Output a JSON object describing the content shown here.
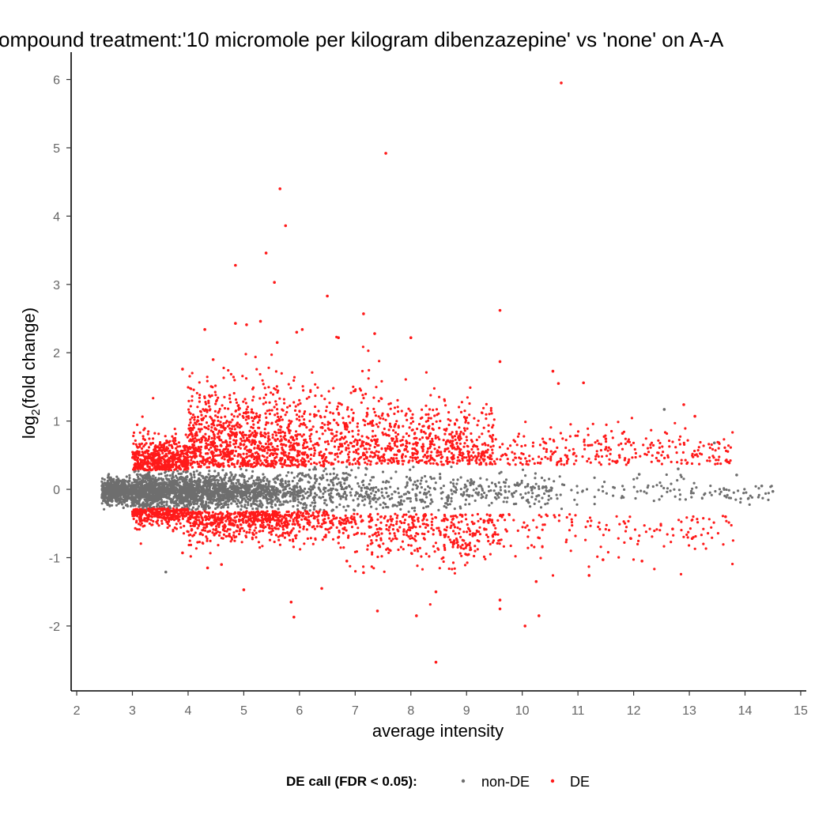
{
  "chart_data": {
    "type": "scatter",
    "title": "ompound treatment:'10 micromole per kilogram dibenzazepine' vs 'none' on A-A",
    "xlabel": "average intensity",
    "ylabel": "log2(fold change)",
    "ylabel_base": "log",
    "ylabel_sub": "2",
    "ylabel_rest": "(fold change)",
    "xlim": [
      1.9,
      15.1
    ],
    "ylim": [
      -2.95,
      6.4
    ],
    "x_ticks": [
      "2",
      "3",
      "4",
      "5",
      "6",
      "7",
      "8",
      "9",
      "10",
      "11",
      "12",
      "13",
      "14",
      "15"
    ],
    "y_ticks": [
      "-2",
      "-1",
      "0",
      "1",
      "2",
      "3",
      "4",
      "5",
      "6"
    ],
    "grid": false,
    "legend": {
      "position": "bottom",
      "title": "DE call (FDR < 0.05):",
      "entries": [
        {
          "label": "non-DE",
          "color": "#6e6e6e"
        },
        {
          "label": "DE",
          "color": "#ff1a1a"
        }
      ]
    },
    "colors": {
      "non_de": "#6e6e6e",
      "de": "#ff1a1a"
    },
    "notes_on_density": "dense band of ~tens of thousands of points; non-DE centered near 0 narrowing with intensity; DE points lie outside approx |lfc|>0.3",
    "series": [
      {
        "name": "DE",
        "points": [
          [
            10.7,
            5.95
          ],
          [
            7.55,
            4.92
          ],
          [
            5.65,
            4.4
          ],
          [
            5.75,
            3.86
          ],
          [
            4.85,
            3.28
          ],
          [
            5.4,
            3.46
          ],
          [
            5.55,
            3.03
          ],
          [
            6.5,
            2.83
          ],
          [
            9.6,
            2.62
          ],
          [
            7.15,
            2.57
          ],
          [
            4.3,
            2.34
          ],
          [
            4.85,
            2.43
          ],
          [
            5.05,
            2.41
          ],
          [
            5.3,
            2.46
          ],
          [
            5.95,
            2.3
          ],
          [
            6.05,
            2.34
          ],
          [
            7.35,
            2.28
          ],
          [
            8.0,
            2.22
          ],
          [
            5.6,
            2.15
          ],
          [
            6.7,
            2.22
          ],
          [
            4.45,
            1.9
          ],
          [
            3.9,
            1.76
          ],
          [
            9.6,
            1.87
          ],
          [
            10.55,
            1.73
          ],
          [
            11.1,
            1.56
          ],
          [
            10.65,
            1.55
          ],
          [
            12.9,
            1.24
          ],
          [
            13.1,
            1.07
          ],
          [
            11.8,
            0.82
          ],
          [
            11.5,
            0.74
          ],
          [
            4.35,
            -1.15
          ],
          [
            3.9,
            -0.93
          ],
          [
            5.0,
            -1.47
          ],
          [
            5.85,
            -1.65
          ],
          [
            5.9,
            -1.87
          ],
          [
            7.4,
            -1.78
          ],
          [
            8.1,
            -1.85
          ],
          [
            8.45,
            -2.53
          ],
          [
            10.05,
            -2.0
          ],
          [
            10.3,
            -1.85
          ],
          [
            9.6,
            -1.75
          ],
          [
            9.6,
            -1.62
          ],
          [
            10.25,
            -1.35
          ],
          [
            11.2,
            -1.26
          ],
          [
            12.15,
            -1.05
          ],
          [
            11.45,
            -1.03
          ],
          [
            6.4,
            -1.45
          ],
          [
            7.15,
            -1.22
          ],
          [
            4.6,
            -1.1
          ],
          [
            12.7,
            -0.58
          ],
          [
            13.05,
            -0.72
          ],
          [
            13.65,
            -0.4
          ],
          [
            11.95,
            -0.72
          ],
          [
            8.45,
            -1.5
          ],
          [
            6.85,
            -1.05
          ]
        ]
      },
      {
        "name": "non-DE",
        "points": [
          [
            3.6,
            -1.21
          ],
          [
            12.55,
            1.17
          ],
          [
            13.45,
            0.68
          ],
          [
            14.3,
            0.05
          ],
          [
            14.5,
            -0.03
          ],
          [
            13.85,
            0.21
          ],
          [
            12.1,
            0.22
          ],
          [
            12.8,
            0.3
          ]
        ]
      }
    ]
  }
}
